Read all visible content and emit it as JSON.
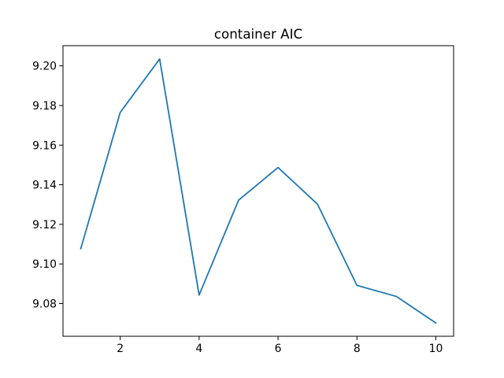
{
  "chart_data": {
    "type": "line",
    "title": "container AIC",
    "xlabel": "",
    "ylabel": "",
    "x": [
      1,
      2,
      3,
      4,
      5,
      6,
      7,
      8,
      9,
      10
    ],
    "series": [
      {
        "values": [
          9.1077,
          9.1765,
          9.2035,
          9.0843,
          9.1322,
          9.1487,
          9.1302,
          9.0892,
          9.0836,
          9.0702
        ],
        "color": "#1f77b4"
      }
    ],
    "xlim": [
      0.55,
      10.45
    ],
    "ylim": [
      9.0635,
      9.2102
    ],
    "xticks": [
      2,
      4,
      6,
      8,
      10
    ],
    "yticks": [
      9.08,
      9.1,
      9.12,
      9.14,
      9.16,
      9.18,
      9.2
    ],
    "ytick_decimals": 2,
    "grid": false,
    "legend": "none"
  }
}
